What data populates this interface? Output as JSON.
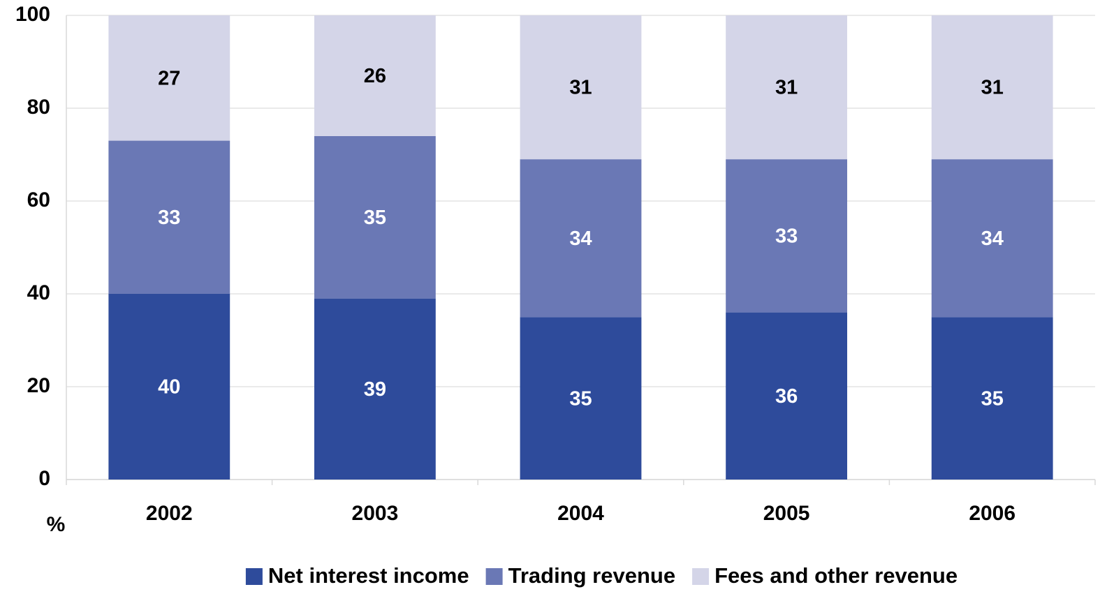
{
  "chart_data": {
    "type": "stacked_bar",
    "y_label": "%",
    "categories": [
      "2002",
      "2003",
      "2004",
      "2005",
      "2006"
    ],
    "series": [
      {
        "name": "Net interest income",
        "color": "#2e4b9b",
        "label_color": "#ffffff",
        "values": [
          40,
          39,
          35,
          36,
          35
        ]
      },
      {
        "name": "Trading revenue",
        "color": "#6a78b5",
        "label_color": "#ffffff",
        "values": [
          33,
          35,
          34,
          33,
          34
        ]
      },
      {
        "name": "Fees and other revenue",
        "color": "#d4d5e8",
        "label_color": "#000000",
        "values": [
          27,
          26,
          31,
          31,
          31
        ]
      }
    ],
    "ylim": [
      0,
      100
    ],
    "yticks": [
      0,
      20,
      40,
      60,
      80,
      100
    ],
    "grid": true,
    "legend": "bottom"
  }
}
